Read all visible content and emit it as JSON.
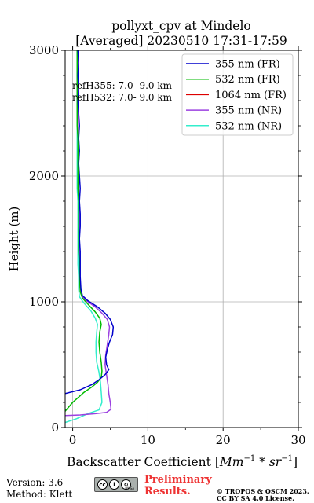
{
  "chart_data": {
    "type": "line",
    "title": "pollyxt_cpv at Mindelo",
    "subtitle": "[Averaged] 20230510 17:31-17:59",
    "xlabel": "Backscatter Coefficient [Mm⁻¹ * sr⁻¹]",
    "ylabel": "Height (m)",
    "xlim": [
      -1,
      30
    ],
    "ylim": [
      0,
      3000
    ],
    "xticks": [
      0,
      10,
      20,
      30
    ],
    "yticks": [
      0,
      1000,
      2000,
      3000
    ],
    "xtick_labels": [
      "0",
      "10",
      "20",
      "30"
    ],
    "ytick_labels": [
      "0",
      "1000",
      "2000",
      "3000"
    ],
    "grid": true,
    "legend_position": "top-right",
    "annotations": [
      "refH355:  7.0- 9.0 km",
      "refH532:  7.0- 9.0 km"
    ],
    "series": [
      {
        "name": "355 nm (FR)",
        "color": "#0000cc",
        "points": [
          [
            -1,
            270
          ],
          [
            1,
            300
          ],
          [
            2.5,
            340
          ],
          [
            3.5,
            380
          ],
          [
            4.3,
            420
          ],
          [
            4.8,
            460
          ],
          [
            4.5,
            500
          ],
          [
            4.4,
            560
          ],
          [
            4.6,
            620
          ],
          [
            4.9,
            680
          ],
          [
            5.3,
            740
          ],
          [
            5.4,
            800
          ],
          [
            5.0,
            860
          ],
          [
            4.3,
            910
          ],
          [
            3.3,
            960
          ],
          [
            2.0,
            1010
          ],
          [
            1.3,
            1050
          ],
          [
            1.1,
            1100
          ],
          [
            1.0,
            1200
          ],
          [
            1.0,
            1300
          ],
          [
            1.0,
            1400
          ],
          [
            0.9,
            1500
          ],
          [
            1.0,
            1600
          ],
          [
            1.0,
            1700
          ],
          [
            0.9,
            1800
          ],
          [
            1.0,
            1900
          ],
          [
            0.9,
            2000
          ],
          [
            0.8,
            2100
          ],
          [
            0.9,
            2200
          ],
          [
            0.8,
            2300
          ],
          [
            0.9,
            2400
          ],
          [
            0.8,
            2500
          ],
          [
            0.7,
            2600
          ],
          [
            0.8,
            2700
          ],
          [
            0.7,
            2800
          ],
          [
            0.8,
            2900
          ],
          [
            0.7,
            3000
          ]
        ]
      },
      {
        "name": "532 nm (FR)",
        "color": "#00bb00",
        "points": [
          [
            -1,
            130
          ],
          [
            0,
            200
          ],
          [
            1.5,
            280
          ],
          [
            2.5,
            320
          ],
          [
            3.3,
            360
          ],
          [
            3.8,
            400
          ],
          [
            3.9,
            450
          ],
          [
            3.8,
            520
          ],
          [
            3.6,
            600
          ],
          [
            3.5,
            680
          ],
          [
            3.6,
            760
          ],
          [
            3.8,
            820
          ],
          [
            3.6,
            870
          ],
          [
            3.0,
            920
          ],
          [
            2.2,
            970
          ],
          [
            1.3,
            1030
          ],
          [
            1.0,
            1080
          ],
          [
            0.9,
            1200
          ],
          [
            0.9,
            1300
          ],
          [
            0.8,
            1400
          ],
          [
            0.8,
            1500
          ],
          [
            0.8,
            1600
          ],
          [
            0.8,
            1700
          ],
          [
            0.8,
            1800
          ],
          [
            0.7,
            1900
          ],
          [
            0.7,
            2000
          ],
          [
            0.7,
            2100
          ],
          [
            0.7,
            2200
          ],
          [
            0.7,
            2300
          ],
          [
            0.6,
            2400
          ],
          [
            0.6,
            2500
          ],
          [
            0.6,
            2600
          ],
          [
            0.6,
            2700
          ],
          [
            0.6,
            2800
          ],
          [
            0.6,
            2900
          ],
          [
            0.6,
            3000
          ]
        ]
      },
      {
        "name": "1064 nm (FR)",
        "color": "#dd0000",
        "points": []
      },
      {
        "name": "355 nm (NR)",
        "color": "#9b40e0",
        "points": [
          [
            -1,
            95
          ],
          [
            1,
            100
          ],
          [
            3,
            110
          ],
          [
            4.5,
            120
          ],
          [
            5.1,
            145
          ],
          [
            5.0,
            200
          ],
          [
            4.8,
            270
          ],
          [
            4.7,
            340
          ],
          [
            4.5,
            420
          ],
          [
            4.3,
            500
          ],
          [
            4.4,
            580
          ],
          [
            4.6,
            660
          ],
          [
            4.8,
            740
          ],
          [
            4.9,
            800
          ],
          [
            4.6,
            860
          ],
          [
            3.9,
            910
          ],
          [
            3.0,
            960
          ],
          [
            1.8,
            1010
          ],
          [
            1.2,
            1050
          ],
          [
            1.0,
            1100
          ],
          [
            0.9,
            1200
          ],
          [
            0.9,
            1300
          ],
          [
            0.9,
            1400
          ],
          [
            0.9,
            1500
          ],
          [
            0.9,
            1600
          ],
          [
            0.9,
            1700
          ],
          [
            0.8,
            1800
          ],
          [
            0.8,
            1900
          ],
          [
            0.8,
            2000
          ],
          [
            0.8,
            2100
          ],
          [
            0.8,
            2200
          ],
          [
            0.7,
            2300
          ],
          [
            0.8,
            2400
          ],
          [
            0.7,
            2500
          ],
          [
            0.7,
            2600
          ],
          [
            0.7,
            2700
          ],
          [
            0.7,
            2800
          ],
          [
            0.7,
            2900
          ],
          [
            0.7,
            3000
          ]
        ]
      },
      {
        "name": "532 nm (NR)",
        "color": "#33eecc",
        "points": [
          [
            -1,
            40
          ],
          [
            0.5,
            70
          ],
          [
            2,
            110
          ],
          [
            3.5,
            140
          ],
          [
            3.9,
            200
          ],
          [
            3.8,
            280
          ],
          [
            3.7,
            360
          ],
          [
            3.5,
            440
          ],
          [
            3.2,
            520
          ],
          [
            3.1,
            600
          ],
          [
            3.1,
            680
          ],
          [
            3.2,
            760
          ],
          [
            3.3,
            820
          ],
          [
            3.0,
            870
          ],
          [
            2.4,
            930
          ],
          [
            1.5,
            990
          ],
          [
            0.9,
            1040
          ],
          [
            0.8,
            1100
          ],
          [
            0.8,
            1200
          ],
          [
            0.7,
            1300
          ],
          [
            0.7,
            1400
          ],
          [
            0.7,
            1500
          ],
          [
            0.7,
            1600
          ],
          [
            0.7,
            1700
          ],
          [
            0.7,
            1800
          ],
          [
            0.6,
            1900
          ],
          [
            0.6,
            2000
          ],
          [
            0.6,
            2100
          ],
          [
            0.6,
            2200
          ],
          [
            0.6,
            2300
          ],
          [
            0.6,
            2400
          ],
          [
            0.6,
            2500
          ],
          [
            0.6,
            2600
          ],
          [
            0.6,
            2700
          ],
          [
            0.6,
            2800
          ],
          [
            0.6,
            2900
          ],
          [
            0.6,
            3000
          ]
        ]
      }
    ]
  },
  "footer": {
    "version": "Version: 3.6",
    "method": "Method: Klett",
    "preliminary_line1": "Preliminary",
    "preliminary_line2": "Results.",
    "copyright_line1": "© TROPOS & OSCM 2023.",
    "copyright_line2": "CC BY SA 4.0 License.",
    "license_badge": {
      "cc": "cc",
      "by": "BY",
      "sa": "SA"
    }
  }
}
